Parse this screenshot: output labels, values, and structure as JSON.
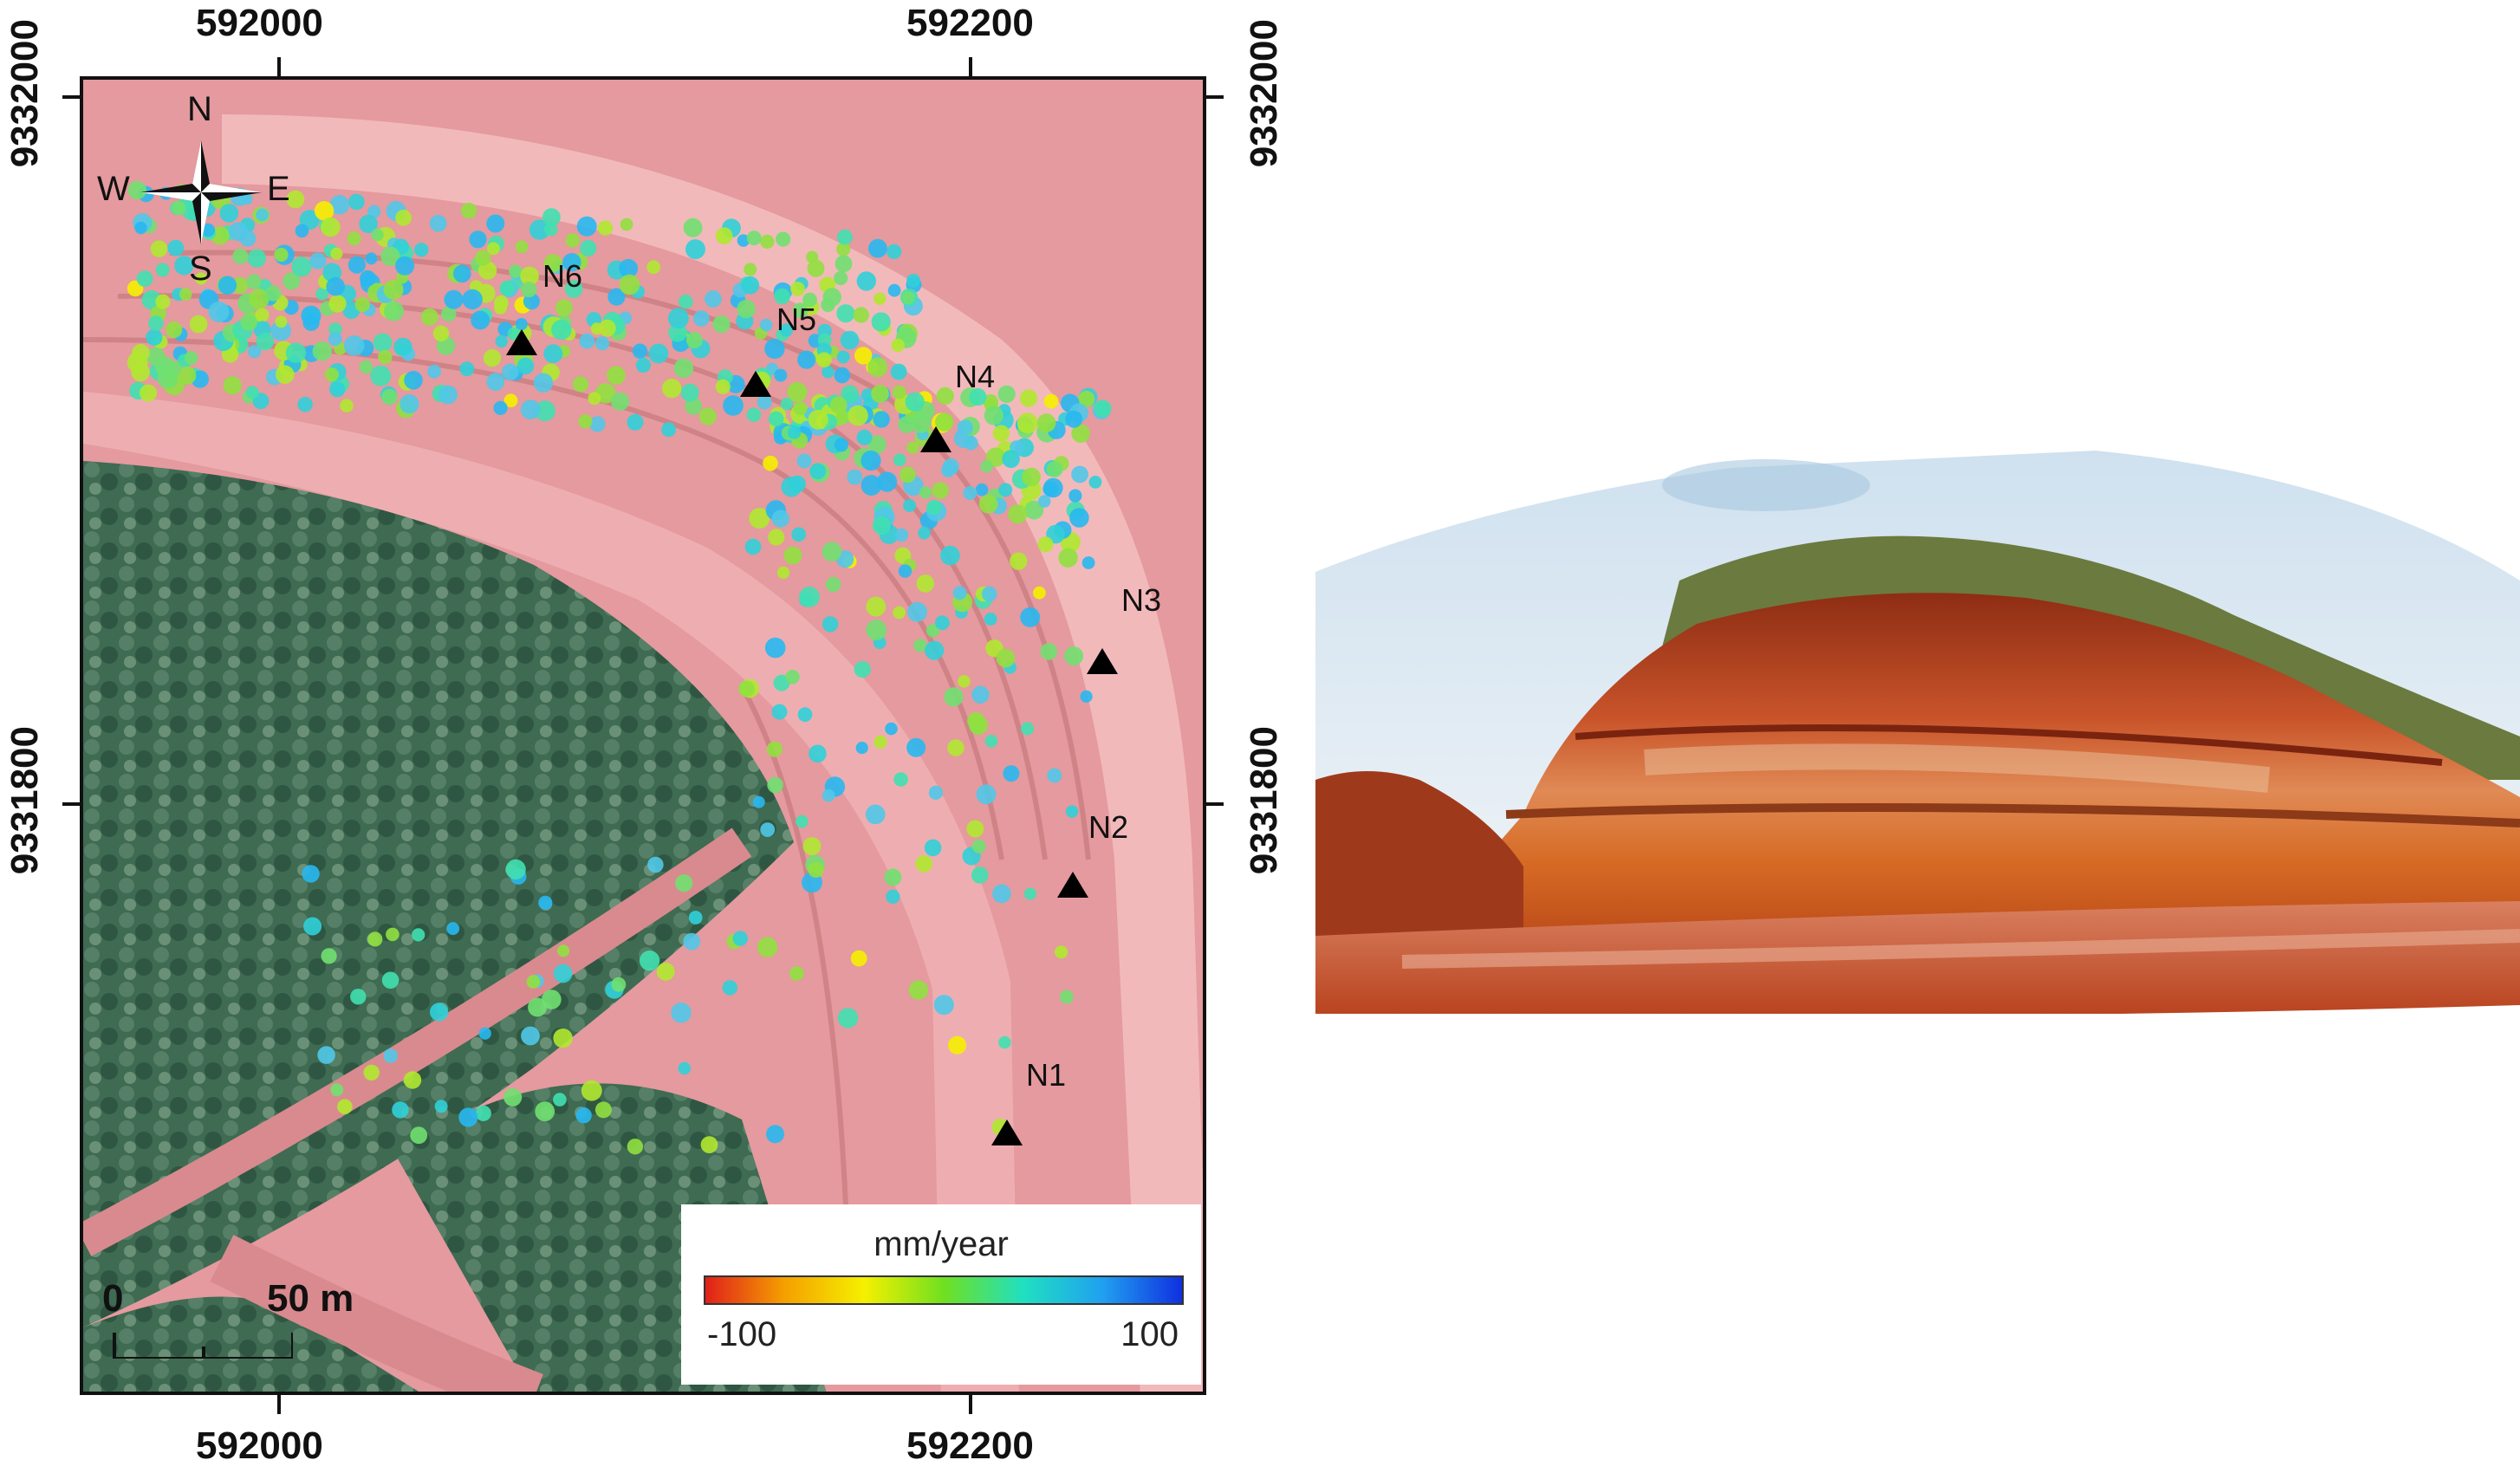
{
  "map": {
    "top_ticks": [
      "592000",
      "592200"
    ],
    "bottom_ticks": [
      "592000",
      "592200"
    ],
    "left_ticks": [
      "9332000",
      "9331800"
    ],
    "right_ticks": [
      "9332000",
      "9331800"
    ],
    "compass": {
      "n": "N",
      "s": "S",
      "e": "E",
      "w": "W"
    },
    "markers": [
      {
        "id": "N6",
        "label": "N6"
      },
      {
        "id": "N5",
        "label": "N5"
      },
      {
        "id": "N4",
        "label": "N4"
      },
      {
        "id": "N3",
        "label": "N3"
      },
      {
        "id": "N2",
        "label": "N2"
      },
      {
        "id": "N1",
        "label": "N1"
      }
    ],
    "legend": {
      "title": "mm/year",
      "min_label": "-100",
      "max_label": "100",
      "colors": [
        "#e0201a",
        "#f5a000",
        "#f5f000",
        "#70e020",
        "#20e0c0",
        "#20a0f0",
        "#1030e0"
      ]
    },
    "scale_bar": {
      "zero_label": "0",
      "distance_label": "50 m"
    },
    "colors": {
      "mine_surface": "#e49a9e",
      "road": "#f0b2b4",
      "vegetation": "#3f6a52",
      "marker": "#000000"
    }
  },
  "photo": {
    "description_icon": "quarry-slope-photo"
  }
}
